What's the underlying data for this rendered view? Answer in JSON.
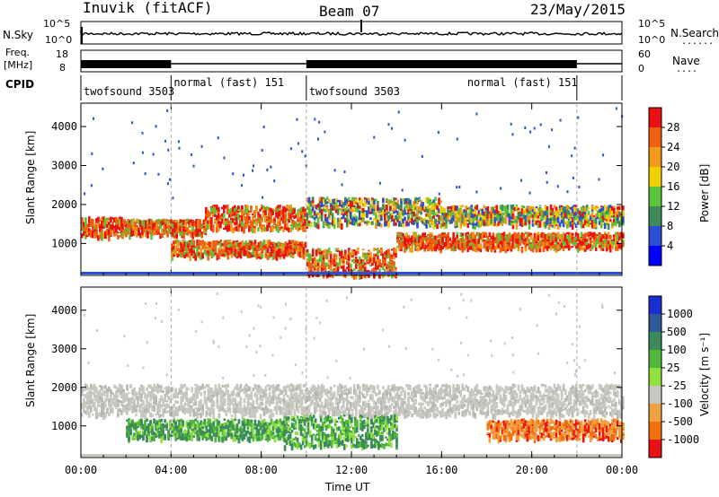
{
  "header": {
    "station": "Inuvik (fitACF)",
    "beam": "Beam 07",
    "date": "23/May/2015"
  },
  "strip1": {
    "left_label": "N.Sky",
    "right_label": "N.Search",
    "left_ticks": [
      "10^5",
      "10^0"
    ],
    "right_ticks": [
      "10^5",
      "10^0"
    ]
  },
  "strip2": {
    "left_label_1": "Freq.",
    "left_label_2": "[MHz]",
    "left_ticks": [
      "18",
      "8"
    ],
    "right_ticks": [
      "60",
      "0"
    ],
    "right_label": "Nave"
  },
  "cpid": {
    "label": "CPID",
    "segments": [
      {
        "name": "twofsound 3503",
        "start": 0,
        "end": 4
      },
      {
        "name": "normal (fast) 151",
        "start": 4,
        "end": 10
      },
      {
        "name": "twofsound 3503",
        "start": 10,
        "end": 22
      },
      {
        "name": "normal (fast) 151",
        "start": 22,
        "end": 24
      }
    ]
  },
  "chart_data": [
    {
      "type": "heatmap",
      "panel": "power",
      "ylabel": "Slant Range [km]",
      "xlabel": "",
      "xlim": [
        0,
        24
      ],
      "ylim": [
        180,
        4600
      ],
      "yticks": [
        "1000",
        "2000",
        "3000",
        "4000"
      ],
      "colorbar_label": "Power [dB]",
      "colorbar_ticks": [
        "4",
        "8",
        "12",
        "16",
        "20",
        "24",
        "28"
      ],
      "colorbar_colors": [
        "#0000ff",
        "#2a4fd6",
        "#3d8a5a",
        "#5cc43a",
        "#f0d000",
        "#f29a1a",
        "#f06010",
        "#e81010"
      ],
      "bands": [
        {
          "t0": 0,
          "t1": 1.8,
          "y0": 1200,
          "y1": 1700,
          "level": "high"
        },
        {
          "t0": 1.8,
          "t1": 5.5,
          "y0": 1250,
          "y1": 1650,
          "level": "high"
        },
        {
          "t0": 5.5,
          "t1": 10,
          "y0": 1400,
          "y1": 2000,
          "level": "high"
        },
        {
          "t0": 10,
          "t1": 16,
          "y0": 1500,
          "y1": 2200,
          "level": "mid"
        },
        {
          "t0": 16,
          "t1": 24,
          "y0": 1500,
          "y1": 2000,
          "level": "mid"
        },
        {
          "t0": 4,
          "t1": 10,
          "y0": 700,
          "y1": 1100,
          "level": "high"
        },
        {
          "t0": 10,
          "t1": 14,
          "y0": 200,
          "y1": 900,
          "level": "high"
        },
        {
          "t0": 14,
          "t1": 24,
          "y0": 900,
          "y1": 1300,
          "level": "high"
        }
      ]
    },
    {
      "type": "heatmap",
      "panel": "velocity",
      "ylabel": "Slant Range [km]",
      "xlabel": "Time UT",
      "xlim": [
        0,
        24
      ],
      "ylim": [
        180,
        4600
      ],
      "xticks": [
        "00:00",
        "04:00",
        "08:00",
        "12:00",
        "16:00",
        "20:00",
        "00:00"
      ],
      "yticks": [
        "1000",
        "2000",
        "3000",
        "4000"
      ],
      "colorbar_label": "Velocity [m s⁻¹]",
      "colorbar_ticks": [
        "1000",
        "500",
        "100",
        "25",
        "-25",
        "-100",
        "-500",
        "-1000"
      ],
      "colorbar_colors": [
        "#1a2fd0",
        "#2e5a9a",
        "#3a8a5a",
        "#4fb83a",
        "#90e040",
        "#c8c8c0",
        "#f0a040",
        "#f07010",
        "#e81010"
      ],
      "bands": [
        {
          "t0": 0,
          "t1": 24,
          "y0": 1300,
          "y1": 2100,
          "level": "low"
        },
        {
          "t0": 2,
          "t1": 9,
          "y0": 700,
          "y1": 1200,
          "level": "positive"
        },
        {
          "t0": 9,
          "t1": 14,
          "y0": 500,
          "y1": 1300,
          "level": "positive"
        },
        {
          "t0": 18,
          "t1": 24,
          "y0": 700,
          "y1": 1200,
          "level": "negative"
        }
      ]
    }
  ]
}
